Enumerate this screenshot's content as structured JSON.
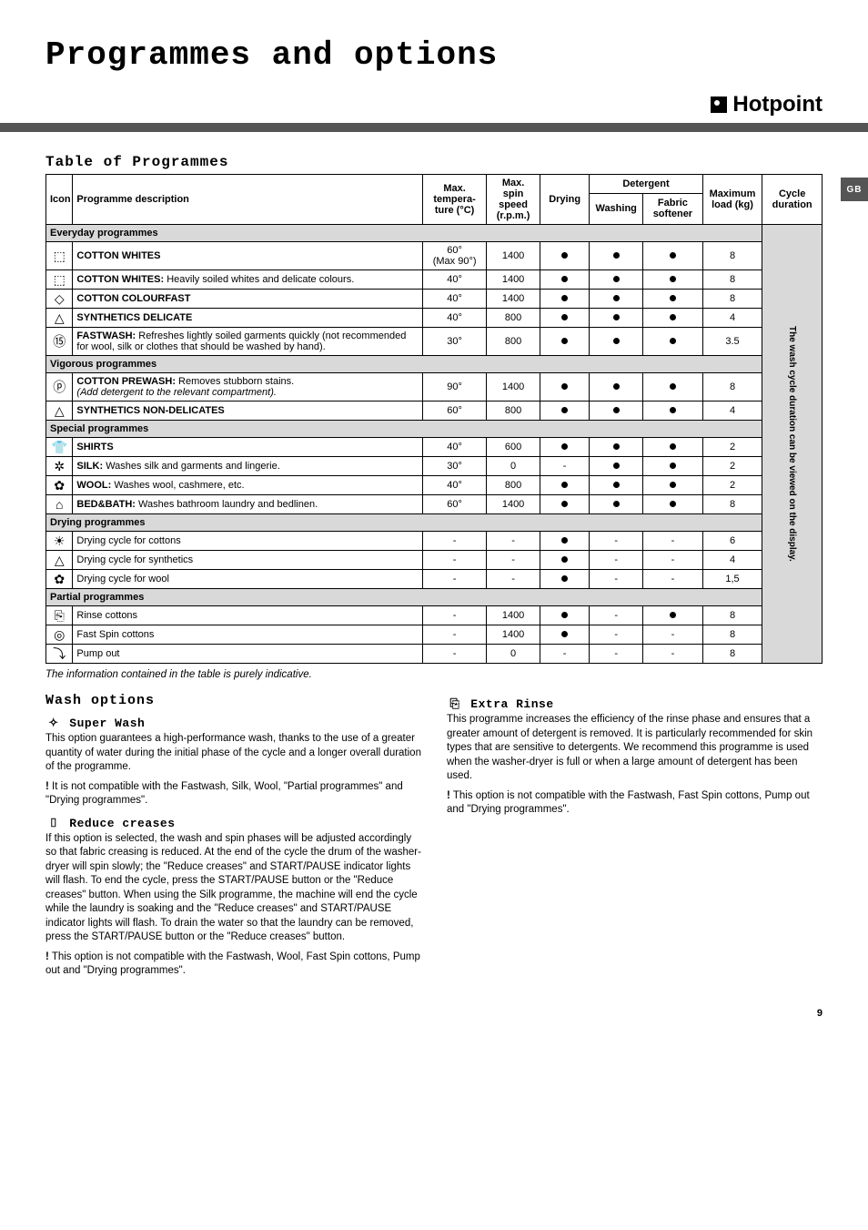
{
  "title": "Programmes and options",
  "brand": "Hotpoint",
  "gb_tab": "GB",
  "section_table_title": "Table of Programmes",
  "headers": {
    "icon": "Icon",
    "desc": "Programme description",
    "temp": "Max. tempera-ture (°C)",
    "spin": "Max. spin speed (r.p.m.)",
    "drying": "Drying",
    "detergent": "Detergent",
    "washing": "Washing",
    "fabric": "Fabric softener",
    "load": "Maximum load (kg)",
    "duration": "Cycle duration"
  },
  "vertical_note": "The wash cycle duration can be viewed on the display.",
  "groups": [
    {
      "label": "Everyday programmes",
      "rows": [
        {
          "icon": "⬚",
          "desc_html": "<b>COTTON WHITES</b>",
          "temp": "60°\n(Max 90°)",
          "spin": "1400",
          "dry": true,
          "wash": true,
          "fab": true,
          "load": "8"
        },
        {
          "icon": "⬚",
          "desc_html": "<b>COTTON WHITES:</b> Heavily soiled whites and delicate colours.",
          "temp": "40°",
          "spin": "1400",
          "dry": true,
          "wash": true,
          "fab": true,
          "load": "8"
        },
        {
          "icon": "◇",
          "desc_html": "<b>COTTON COLOURFAST</b>",
          "temp": "40°",
          "spin": "1400",
          "dry": true,
          "wash": true,
          "fab": true,
          "load": "8"
        },
        {
          "icon": "△",
          "desc_html": "<b>SYNTHETICS DELICATE</b>",
          "temp": "40°",
          "spin": "800",
          "dry": true,
          "wash": true,
          "fab": true,
          "load": "4"
        },
        {
          "icon": "⑮",
          "desc_html": "<b>FASTWASH:</b> Refreshes lightly soiled garments quickly (not recommended for wool, silk or clothes that should be washed by hand).",
          "temp": "30°",
          "spin": "800",
          "dry": true,
          "wash": true,
          "fab": true,
          "load": "3.5"
        }
      ]
    },
    {
      "label": "Vigorous programmes",
      "rows": [
        {
          "icon": "ⓟ",
          "desc_html": "<b>COTTON PREWASH:</b> Removes stubborn stains.<br><i>(Add detergent to the relevant compartment).</i>",
          "temp": "90°",
          "spin": "1400",
          "dry": true,
          "wash": true,
          "fab": true,
          "load": "8"
        },
        {
          "icon": "△",
          "desc_html": "<b>SYNTHETICS NON-DELICATES</b>",
          "temp": "60°",
          "spin": "800",
          "dry": true,
          "wash": true,
          "fab": true,
          "load": "4"
        }
      ]
    },
    {
      "label": "Special programmes",
      "rows": [
        {
          "icon": "👕",
          "desc_html": "<b>SHIRTS</b>",
          "temp": "40°",
          "spin": "600",
          "dry": true,
          "wash": true,
          "fab": true,
          "load": "2"
        },
        {
          "icon": "✲",
          "desc_html": "<b>SILK:</b> Washes silk and garments and lingerie.",
          "temp": "30°",
          "spin": "0",
          "dry": "-",
          "wash": true,
          "fab": true,
          "load": "2"
        },
        {
          "icon": "✿",
          "desc_html": "<b>WOOL:</b> Washes wool, cashmere, etc.",
          "temp": "40°",
          "spin": "800",
          "dry": true,
          "wash": true,
          "fab": true,
          "load": "2"
        },
        {
          "icon": "⌂",
          "desc_html": "<b>BED&BATH:</b> Washes bathroom laundry and bedlinen.",
          "temp": "60°",
          "spin": "1400",
          "dry": true,
          "wash": true,
          "fab": true,
          "load": "8"
        }
      ]
    },
    {
      "label": "Drying programmes",
      "rows": [
        {
          "icon": "☀",
          "desc_html": "Drying cycle for cottons",
          "temp": "-",
          "spin": "-",
          "dry": true,
          "wash": "-",
          "fab": "-",
          "load": "6"
        },
        {
          "icon": "△",
          "desc_html": "Drying cycle for synthetics",
          "temp": "-",
          "spin": "-",
          "dry": true,
          "wash": "-",
          "fab": "-",
          "load": "4"
        },
        {
          "icon": "✿",
          "desc_html": "Drying cycle for wool",
          "temp": "-",
          "spin": "-",
          "dry": true,
          "wash": "-",
          "fab": "-",
          "load": "1,5"
        }
      ]
    },
    {
      "label": "Partial programmes",
      "rows": [
        {
          "icon": "⎘",
          "desc_html": "Rinse cottons",
          "temp": "-",
          "spin": "1400",
          "dry": true,
          "wash": "-",
          "fab": true,
          "load": "8"
        },
        {
          "icon": "◎",
          "desc_html": "Fast Spin cottons",
          "temp": "-",
          "spin": "1400",
          "dry": true,
          "wash": "-",
          "fab": "-",
          "load": "8"
        },
        {
          "icon": "⤵",
          "desc_html": "Pump out",
          "temp": "-",
          "spin": "0",
          "dry": "-",
          "wash": "-",
          "fab": "-",
          "load": "8"
        }
      ]
    }
  ],
  "footnote": "The information contained in the table is purely indicative.",
  "wash_options_title": "Wash options",
  "options_left": [
    {
      "sym": "✧",
      "title": "Super Wash",
      "body": "This option guarantees a high-performance wash, thanks to the use of a greater quantity of water during the initial phase of the cycle and a longer overall duration of the programme.",
      "warn": "! It is not compatible with the Fastwash, Silk, Wool, \"Partial programmes\" and \"Drying programmes\"."
    },
    {
      "sym": "⌷",
      "title": "Reduce creases",
      "body": "If this option is selected, the wash and spin phases will be adjusted accordingly so that fabric creasing is reduced. At the end of the cycle the drum of the washer-dryer will spin slowly; the \"Reduce creases\" and START/PAUSE indicator lights will flash. To end the cycle, press the START/PAUSE button or the \"Reduce creases\" button. When using the Silk programme, the machine will end the cycle while the laundry is soaking and the \"Reduce creases\" and START/PAUSE indicator lights will flash. To drain the water so that the laundry can be removed, press the START/PAUSE button or the \"Reduce creases\" button.",
      "warn": "! This option is not compatible with the Fastwash, Wool, Fast Spin cottons, Pump out and \"Drying programmes\"."
    }
  ],
  "options_right": [
    {
      "sym": "⎘",
      "title": "Extra Rinse",
      "body": "This programme increases the efficiency of the rinse phase and ensures that a greater amount of detergent is removed. It is particularly recommended for skin types that are sensitive to detergents. We recommend this programme is used when the washer-dryer is full or when a large amount of detergent has been used.",
      "warn": "! This option is not compatible with the Fastwash, Fast Spin cottons, Pump out and \"Drying programmes\"."
    }
  ],
  "page_number": "9"
}
